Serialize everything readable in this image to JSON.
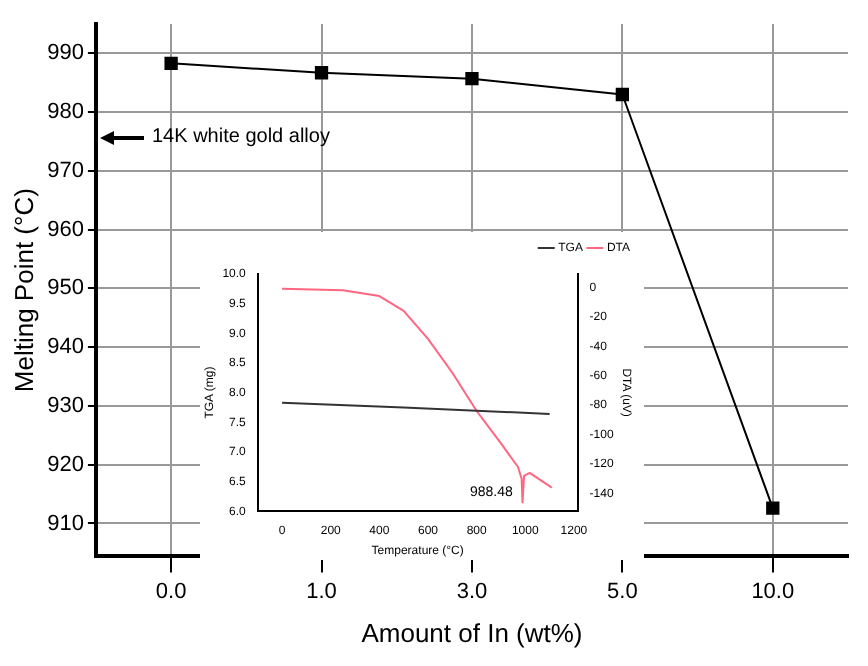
{
  "chart_data": [
    {
      "type": "line",
      "xlabel": "Amount of In (wt%)",
      "ylabel": "Melting Point (°C)",
      "categories": [
        "0.0",
        "1.0",
        "3.0",
        "5.0",
        "10.0"
      ],
      "series": [
        {
          "color": "#000000",
          "values": [
            988.3,
            986.7,
            985.7,
            983.0,
            912.6
          ]
        }
      ],
      "ylim": [
        904.4,
        995
      ],
      "yticks": [
        910,
        920,
        930,
        940,
        950,
        960,
        970,
        980,
        990
      ],
      "grid": true,
      "legend": false,
      "marker": "square",
      "annotations": [
        "14K white gold alloy"
      ]
    },
    {
      "type": "line",
      "xlabel": "Temperature (°C)",
      "ylabel": "TGA (mg)",
      "y2label": "DTA (uV)",
      "series": [
        {
          "name": "TGA",
          "color": "#333333",
          "x": [
            0,
            500,
            1100
          ],
          "values": [
            7.83,
            7.75,
            7.64
          ]
        },
        {
          "name": "DTA",
          "color": "#ff6680",
          "axis": "y2",
          "x": [
            0,
            250,
            400,
            500,
            600,
            700,
            800,
            900,
            970,
            985,
            988.48,
            995,
            1018,
            1109
          ],
          "values": [
            -1,
            -2,
            -6,
            -16,
            -35,
            -58,
            -84,
            -106,
            -122,
            -130,
            -146,
            -128,
            -126,
            -136
          ]
        }
      ],
      "xlim": [
        -100,
        1215
      ],
      "xticks": [
        0,
        200,
        400,
        600,
        800,
        1000,
        1200
      ],
      "ylim": [
        6,
        10
      ],
      "yticks": [
        {
          "value": 6,
          "label": "6.0"
        },
        {
          "value": 6.5,
          "label": "6.5"
        },
        {
          "value": 7,
          "label": "7.0"
        },
        {
          "value": 7.5,
          "label": "7.5"
        },
        {
          "value": 8,
          "label": "8.0"
        },
        {
          "value": 8.5,
          "label": "8.5"
        },
        {
          "value": 9,
          "label": "9.0"
        },
        {
          "value": 9.5,
          "label": "9.5"
        },
        {
          "value": 10,
          "label": "10.0"
        }
      ],
      "y2lim": [
        -152,
        9
      ],
      "y2ticks": [
        0,
        -20,
        -40,
        -60,
        -80,
        -100,
        -120,
        -140
      ],
      "grid": false,
      "legend": "top right",
      "marker": "none",
      "annotations": [
        "988.48"
      ]
    }
  ]
}
